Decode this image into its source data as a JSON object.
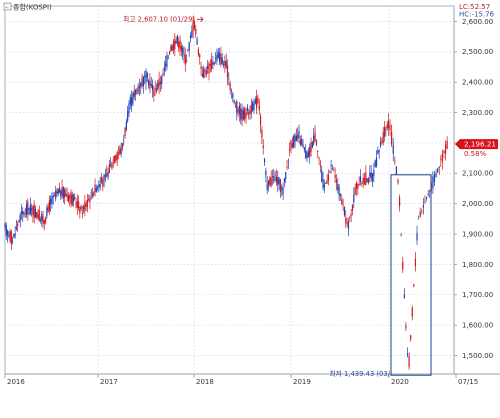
{
  "chart_data": {
    "type": "candlestick",
    "legend_label": "종합(KOSPI)",
    "title_checkbox": "-",
    "y_ticks": [
      1500,
      1600,
      1700,
      1800,
      1900,
      2000,
      2100,
      2200,
      2300,
      2400,
      2500,
      2600
    ],
    "y_tick_labels": [
      "1,500.00",
      "1,600.00",
      "1,700.00",
      "1,800.00",
      "1,900.00",
      "2,000.00",
      "2,100.00",
      "2,200.00",
      "2,300.00",
      "2,400.00",
      "2,500.00",
      "2,600.00"
    ],
    "ylim": [
      1439,
      2651
    ],
    "x_labels": [
      "2016",
      "2017",
      "2018",
      "2019",
      "2020",
      "07/15"
    ],
    "info_lines": [
      "LC:52.57",
      "HC:-15.76"
    ],
    "last_price_label": "2,196.21",
    "last_change_label": "0.58%",
    "annotations": {
      "high": {
        "label": "최고 2,607.10 (01/29)",
        "value": 2607.1
      },
      "low": {
        "label": "최저 1,439.43 (03/",
        "value": 1439.43
      }
    },
    "series_path": [
      [
        "2016-01",
        1920
      ],
      [
        "2016-02",
        1880
      ],
      [
        "2016-03",
        1960
      ],
      [
        "2016-04",
        1985
      ],
      [
        "2016-05",
        1970
      ],
      [
        "2016-06",
        1940
      ],
      [
        "2016-07",
        2010
      ],
      [
        "2016-08",
        2040
      ],
      [
        "2016-09",
        2030
      ],
      [
        "2016-10",
        2010
      ],
      [
        "2016-11",
        1975
      ],
      [
        "2016-12",
        2025
      ],
      [
        "2017-01",
        2060
      ],
      [
        "2017-02",
        2085
      ],
      [
        "2017-03",
        2150
      ],
      [
        "2017-04",
        2180
      ],
      [
        "2017-05",
        2330
      ],
      [
        "2017-06",
        2380
      ],
      [
        "2017-07",
        2420
      ],
      [
        "2017-08",
        2370
      ],
      [
        "2017-09",
        2410
      ],
      [
        "2017-10",
        2510
      ],
      [
        "2017-11",
        2540
      ],
      [
        "2017-12",
        2470
      ],
      [
        "2018-01",
        2600
      ],
      [
        "2018-02",
        2430
      ],
      [
        "2018-03",
        2450
      ],
      [
        "2018-04",
        2490
      ],
      [
        "2018-05",
        2450
      ],
      [
        "2018-06",
        2330
      ],
      [
        "2018-07",
        2290
      ],
      [
        "2018-08",
        2310
      ],
      [
        "2018-09",
        2340
      ],
      [
        "2018-10",
        2060
      ],
      [
        "2018-11",
        2090
      ],
      [
        "2018-12",
        2040
      ],
      [
        "2019-01",
        2200
      ],
      [
        "2019-02",
        2220
      ],
      [
        "2019-03",
        2150
      ],
      [
        "2019-04",
        2230
      ],
      [
        "2019-05",
        2050
      ],
      [
        "2019-06",
        2125
      ],
      [
        "2019-07",
        2030
      ],
      [
        "2019-08",
        1920
      ],
      [
        "2019-09",
        2060
      ],
      [
        "2019-10",
        2080
      ],
      [
        "2019-11",
        2090
      ],
      [
        "2019-12",
        2200
      ],
      [
        "2020-01",
        2270
      ],
      [
        "2020-02",
        2060
      ],
      [
        "2020-03",
        1440
      ],
      [
        "2020-04",
        1950
      ],
      [
        "2020-05",
        2030
      ],
      [
        "2020-06",
        2110
      ],
      [
        "2020-07",
        2196
      ]
    ],
    "colors": {
      "up": "#d0151b",
      "down": "#1a3fb5",
      "box": "#1f3f8f",
      "badge": "#d8111b"
    }
  }
}
